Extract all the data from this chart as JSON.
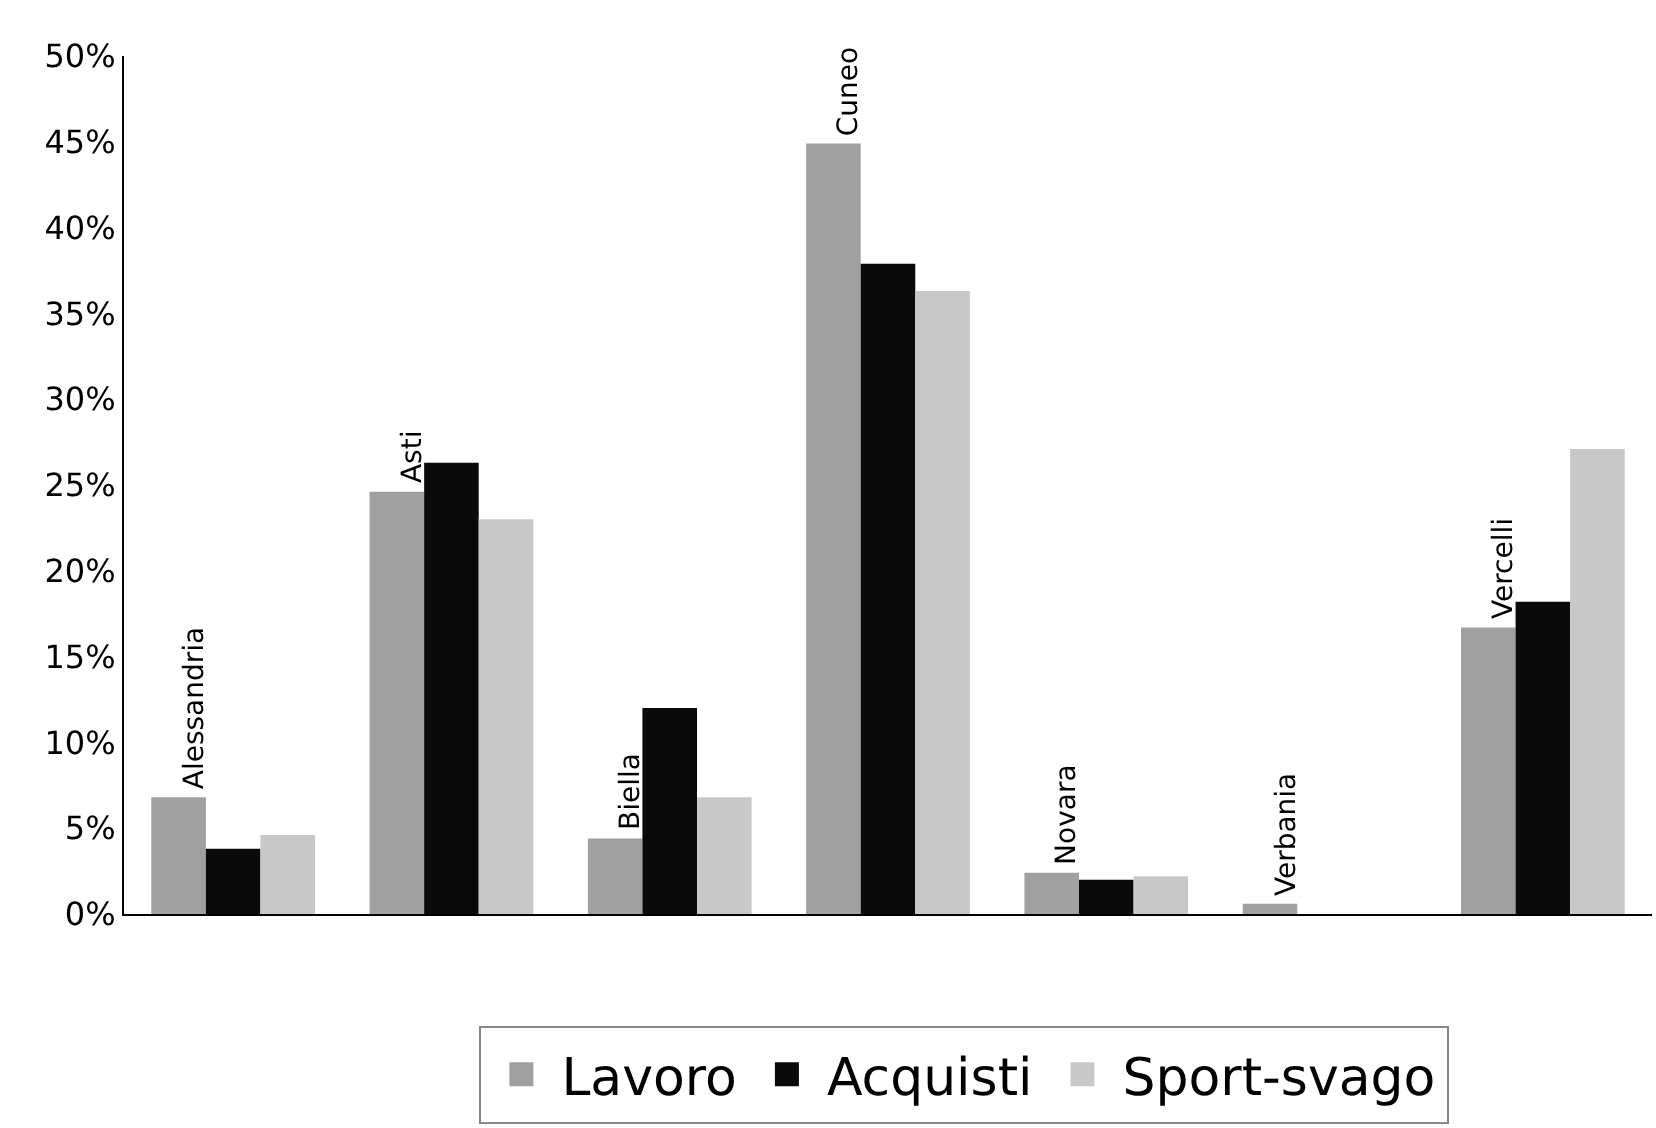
{
  "chart_data": {
    "type": "bar",
    "categories": [
      "Alessandria",
      "Asti",
      "Biella",
      "Cuneo",
      "Novara",
      "Verbania",
      "Vercelli"
    ],
    "series": [
      {
        "name": "Lavoro",
        "color": "#a0a0a0",
        "values": [
          6.8,
          24.6,
          4.4,
          44.9,
          2.4,
          0.6,
          16.7
        ]
      },
      {
        "name": "Acquisti",
        "color": "#0a0a0a",
        "values": [
          3.8,
          26.3,
          12.0,
          37.9,
          2.0,
          null,
          18.2
        ]
      },
      {
        "name": "Sport-svago",
        "color": "#c8c8c8",
        "values": [
          4.6,
          23.0,
          6.8,
          36.3,
          2.2,
          null,
          27.1
        ]
      }
    ],
    "ylim": [
      0,
      50
    ],
    "yticks": [
      {
        "value": 0,
        "label": "0%"
      },
      {
        "value": 5,
        "label": "5%"
      },
      {
        "value": 10,
        "label": "10%"
      },
      {
        "value": 15,
        "label": "15%"
      },
      {
        "value": 20,
        "label": "20%"
      },
      {
        "value": 25,
        "label": "25%"
      },
      {
        "value": 30,
        "label": "30%"
      },
      {
        "value": 35,
        "label": "35%"
      },
      {
        "value": 40,
        "label": "40%"
      },
      {
        "value": 45,
        "label": "45%"
      },
      {
        "value": 50,
        "label": "50%"
      }
    ],
    "grid": false,
    "legend": "bottom"
  }
}
